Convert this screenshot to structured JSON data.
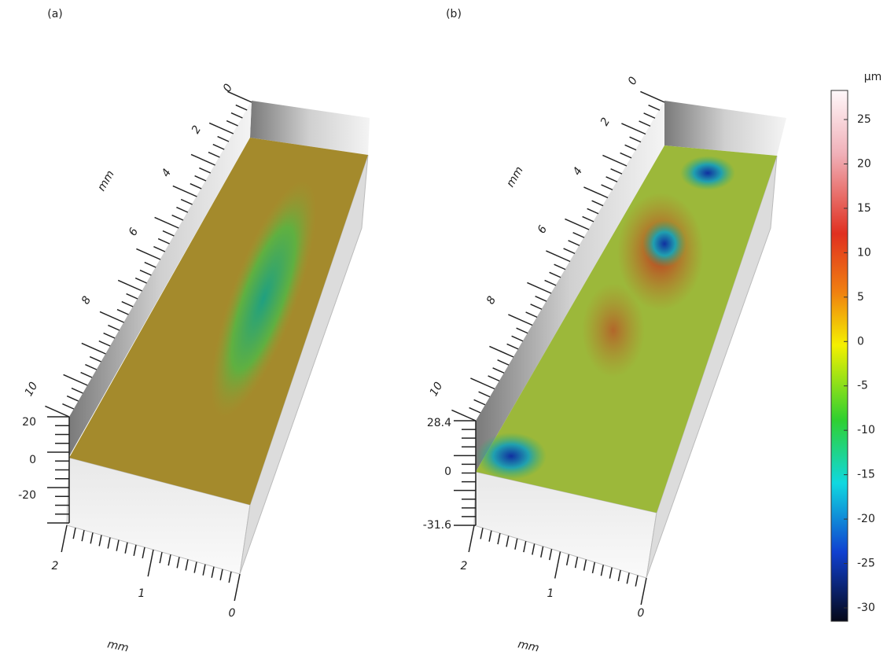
{
  "panels": [
    {
      "label": "(a)",
      "y_axis_label": "mm",
      "y_ticks": [
        0,
        2,
        4,
        6,
        8,
        10
      ],
      "z_ticks": [
        20,
        0,
        -20
      ],
      "x_ticks": [
        2,
        1,
        0
      ],
      "x_axis_label": "mm"
    },
    {
      "label": "(b)",
      "y_axis_label": "mm",
      "y_ticks": [
        0,
        2,
        4,
        6,
        8,
        10
      ],
      "z_ticks": [
        28.4,
        0,
        -31.6
      ],
      "x_ticks": [
        2,
        1,
        0
      ],
      "x_axis_label": "mm"
    }
  ],
  "colorbar": {
    "unit": "μm",
    "ticks": [
      25,
      20,
      15,
      10,
      5,
      0,
      -5,
      -10,
      -15,
      -20,
      -25,
      -30
    ]
  }
}
